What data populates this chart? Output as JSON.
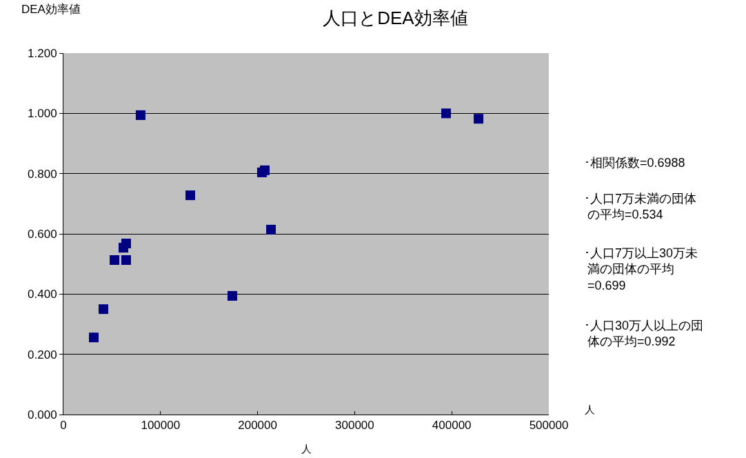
{
  "chart_data": {
    "type": "scatter",
    "title": "人口とDEA効率値",
    "ylabel": "DEA効率値",
    "xlabel": "人",
    "x": [
      31250,
      41200,
      52600,
      64600,
      61800,
      64600,
      79500,
      130700,
      174000,
      204500,
      207400,
      213800,
      394200,
      427600
    ],
    "series": [
      {
        "color": "#000080",
        "values": [
          0.256,
          0.35,
          0.513,
          0.513,
          0.554,
          0.568,
          0.994,
          0.728,
          0.394,
          0.804,
          0.811,
          0.614,
          1.0,
          0.982
        ]
      }
    ],
    "marker": "square",
    "xlim": [
      0,
      500000
    ],
    "xticks": [
      0,
      100000,
      200000,
      300000,
      400000,
      500000
    ],
    "ylim": [
      0,
      1.2
    ],
    "yticks": [
      {
        "value": 0,
        "label": "0.000"
      },
      {
        "value": 0.2,
        "label": "0.200"
      },
      {
        "value": 0.4,
        "label": "0.400"
      },
      {
        "value": 0.6,
        "label": "0.600"
      },
      {
        "value": 0.8,
        "label": "0.800"
      },
      {
        "value": 1.0,
        "label": "1.000"
      },
      {
        "value": 1.2,
        "label": "1.200"
      }
    ],
    "grid": "y",
    "legend": false,
    "annotations": [
      "人",
      "･相関係数=0.6988",
      "･人口7万未満の団体の平均=0.534",
      "･人口7万以上30万未満の団体の平均=0.699",
      "･人口30万人以上の団体の平均=0.992"
    ]
  }
}
